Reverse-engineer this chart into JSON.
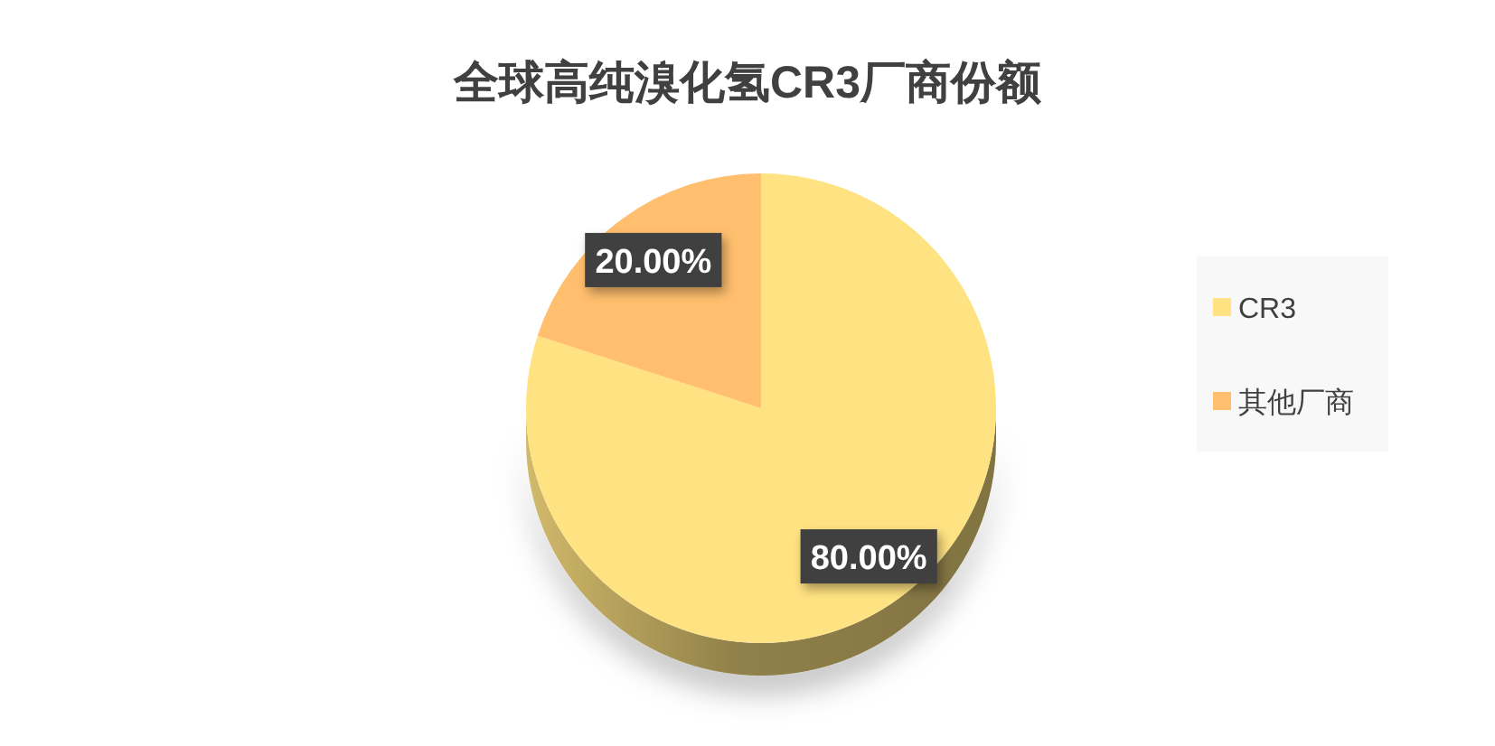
{
  "chart_data": {
    "type": "pie",
    "title": "全球高纯溴化氢CR3厂商份额",
    "categories": [
      "CR3",
      "其他厂商"
    ],
    "values": [
      80,
      20
    ],
    "colors": [
      "#ffe282",
      "#ffbf6e"
    ],
    "value_labels": [
      "80.00%",
      "20.00%"
    ],
    "legend": "right"
  }
}
